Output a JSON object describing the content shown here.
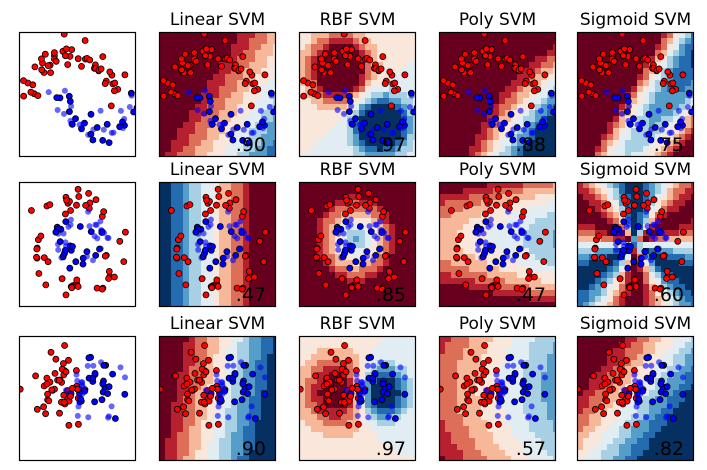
{
  "chart_data": {
    "type": "scatter",
    "layout": {
      "rows": 3,
      "cols": 5
    },
    "datasets": [
      {
        "name": "moons",
        "scores": {
          "Linear SVM": ".90",
          "RBF SVM": ".97",
          "Poly SVM": ".88",
          "Sigmoid SVM": ".75"
        }
      },
      {
        "name": "circles",
        "scores": {
          "Linear SVM": ".47",
          "RBF SVM": ".85",
          "Poly SVM": ".47",
          "Sigmoid SVM": ".60"
        }
      },
      {
        "name": "linear",
        "scores": {
          "Linear SVM": ".90",
          "RBF SVM": ".97",
          "Poly SVM": ".57",
          "Sigmoid SVM": ".82"
        }
      }
    ],
    "classifiers": [
      "Linear SVM",
      "RBF SVM",
      "Poly SVM",
      "Sigmoid SVM"
    ],
    "class_colors": {
      "class0": "#ff0000",
      "class1": "#0000ff"
    },
    "colormap": "RdBu",
    "grid": false,
    "legend": "none"
  }
}
